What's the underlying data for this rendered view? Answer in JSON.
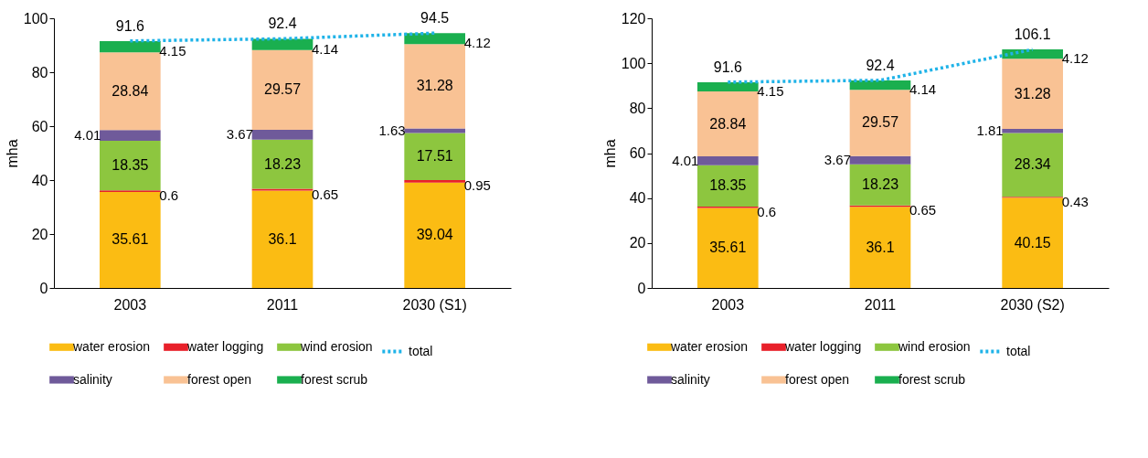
{
  "chart_data": [
    {
      "type": "bar",
      "stacked": true,
      "categories": [
        "2003",
        "2011",
        "2030 (S1)"
      ],
      "ylabel": "mha",
      "ylim": [
        0,
        100
      ],
      "yticks": [
        0,
        20,
        40,
        60,
        80,
        100
      ],
      "grid": false,
      "legend": "bottom",
      "data_labels": true,
      "series": [
        {
          "name": "water erosion",
          "color": "#fbbc13",
          "values": [
            35.61,
            36.1,
            39.04
          ]
        },
        {
          "name": "water logging",
          "color": "#e8202a",
          "values": [
            0.6,
            0.65,
            0.95
          ]
        },
        {
          "name": "wind erosion",
          "color": "#8dc63f",
          "values": [
            18.35,
            18.23,
            17.51
          ]
        },
        {
          "name": "salinity",
          "color": "#6f5a9a",
          "values": [
            4.01,
            3.67,
            1.63
          ]
        },
        {
          "name": "forest open",
          "color": "#f9c294",
          "values": [
            28.84,
            29.57,
            31.28
          ]
        },
        {
          "name": "forest scrub",
          "color": "#1aaf4f",
          "values": [
            4.15,
            4.14,
            4.12
          ]
        },
        {
          "name": "total",
          "type": "line",
          "line_style": "dotted",
          "color": "#1fb3e8",
          "values": [
            91.6,
            92.4,
            94.5
          ]
        }
      ]
    },
    {
      "type": "bar",
      "stacked": true,
      "categories": [
        "2003",
        "2011",
        "2030 (S2)"
      ],
      "ylabel": "mha",
      "ylim": [
        0,
        120
      ],
      "yticks": [
        0,
        20,
        40,
        60,
        80,
        100,
        120
      ],
      "grid": false,
      "legend": "bottom",
      "data_labels": true,
      "series": [
        {
          "name": "water erosion",
          "color": "#fbbc13",
          "values": [
            35.61,
            36.1,
            40.15
          ]
        },
        {
          "name": "water logging",
          "color": "#e8202a",
          "values": [
            0.6,
            0.65,
            0.43
          ]
        },
        {
          "name": "wind erosion",
          "color": "#8dc63f",
          "values": [
            18.35,
            18.23,
            28.34
          ]
        },
        {
          "name": "salinity",
          "color": "#6f5a9a",
          "values": [
            4.01,
            3.67,
            1.81
          ]
        },
        {
          "name": "forest open",
          "color": "#f9c294",
          "values": [
            28.84,
            29.57,
            31.28
          ]
        },
        {
          "name": "forest scrub",
          "color": "#1aaf4f",
          "values": [
            4.15,
            4.14,
            4.12
          ]
        },
        {
          "name": "total",
          "type": "line",
          "line_style": "dotted",
          "color": "#1fb3e8",
          "values": [
            91.6,
            92.4,
            106.1
          ]
        }
      ]
    }
  ]
}
